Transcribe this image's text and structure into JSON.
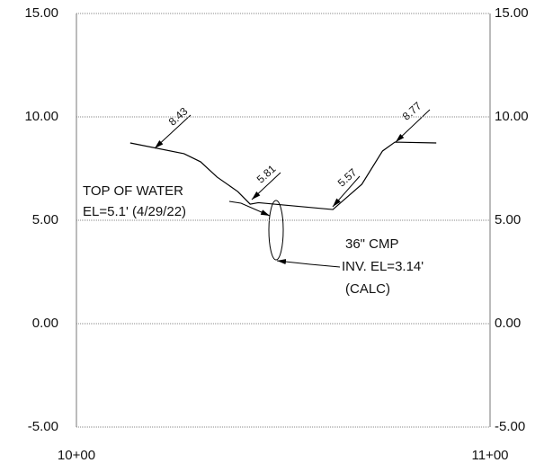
{
  "chart_data": {
    "type": "line",
    "xlim": [
      1000,
      1100
    ],
    "xticks": [
      {
        "value": 1000,
        "label": "10+00"
      },
      {
        "value": 1100,
        "label": "11+00"
      }
    ],
    "ylim": [
      -5,
      15
    ],
    "yticks": [
      {
        "value": -5,
        "label": "-5.00"
      },
      {
        "value": 0,
        "label": "0.00"
      },
      {
        "value": 5,
        "label": "5.00"
      },
      {
        "value": 10,
        "label": "10.00"
      },
      {
        "value": 15,
        "label": "15.00"
      }
    ],
    "grid": true,
    "series": [
      {
        "color": "#000000",
        "x": [
          1013,
          1026,
          1030,
          1034,
          1039,
          1042,
          1044,
          1062,
          1069,
          1074,
          1077,
          1087
        ],
        "values": [
          8.74,
          8.22,
          7.83,
          7.09,
          6.39,
          5.78,
          5.85,
          5.52,
          6.74,
          8.35,
          8.78,
          8.74
        ]
      }
    ],
    "annotations": {
      "elev_1": "8.43",
      "elev_2": "5.81",
      "elev_3": "5.57",
      "elev_4": "8.77",
      "water_1": "TOP OF WATER",
      "water_2": "EL=5.1' (4/29/22)",
      "pipe_1": "36\" CMP",
      "pipe_2": "INV. EL=3.14'",
      "pipe_3": "(CALC)"
    }
  }
}
